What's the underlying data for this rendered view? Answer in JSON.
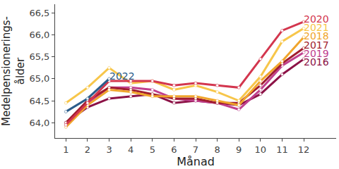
{
  "chart_data": {
    "type": "line",
    "x_label": "Månad",
    "y_label": "Medelpensionerings-\nålder",
    "x": [
      1,
      2,
      3,
      4,
      5,
      6,
      7,
      8,
      9,
      10,
      11,
      12
    ],
    "xlim": [
      0.5,
      13.5
    ],
    "xticks": [
      1,
      2,
      3,
      4,
      5,
      6,
      7,
      8,
      9,
      10,
      11,
      12
    ],
    "ylim": [
      63.65,
      66.7
    ],
    "yticks": [
      {
        "value": 64.0,
        "label": "64,0"
      },
      {
        "value": 64.5,
        "label": "64,5"
      },
      {
        "value": 65.0,
        "label": "65,0"
      },
      {
        "value": 65.5,
        "label": "65,5"
      },
      {
        "value": 66.0,
        "label": "66,0"
      },
      {
        "value": 66.5,
        "label": "66,5"
      }
    ],
    "grid": false,
    "marker": "circle",
    "series": [
      {
        "name": "2016",
        "color": "#8c1246",
        "values": [
          64.0,
          64.35,
          64.55,
          64.6,
          64.65,
          64.45,
          64.5,
          64.45,
          64.4,
          64.65,
          65.1,
          65.45
        ]
      },
      {
        "name": "2019",
        "color": "#c0408e",
        "values": [
          63.95,
          64.45,
          64.8,
          64.8,
          64.75,
          64.55,
          64.5,
          64.45,
          64.3,
          64.75,
          65.3,
          65.6
        ]
      },
      {
        "name": "2017",
        "color": "#a11d2e",
        "values": [
          64.0,
          64.5,
          64.8,
          64.75,
          64.65,
          64.55,
          64.55,
          64.45,
          64.45,
          64.85,
          65.35,
          65.7
        ]
      },
      {
        "name": "2018",
        "color": "#f0a52c",
        "values": [
          63.9,
          64.4,
          64.75,
          64.7,
          64.6,
          64.6,
          64.6,
          64.5,
          64.4,
          64.95,
          65.4,
          65.95
        ]
      },
      {
        "name": "2021",
        "color": "#f7c64a",
        "values": [
          64.45,
          64.8,
          65.25,
          64.9,
          64.95,
          64.75,
          64.85,
          64.7,
          64.5,
          65.05,
          65.85,
          66.15
        ]
      },
      {
        "name": "2020",
        "color": "#d3364e",
        "values": [
          63.95,
          64.45,
          64.95,
          64.95,
          64.95,
          64.85,
          64.9,
          64.85,
          64.8,
          65.45,
          66.1,
          66.3
        ]
      },
      {
        "name": "2022",
        "color": "#2b5d8b",
        "values": [
          64.25,
          64.55,
          65.0,
          null,
          null,
          null,
          null,
          null,
          null,
          null,
          null,
          null
        ]
      }
    ]
  }
}
